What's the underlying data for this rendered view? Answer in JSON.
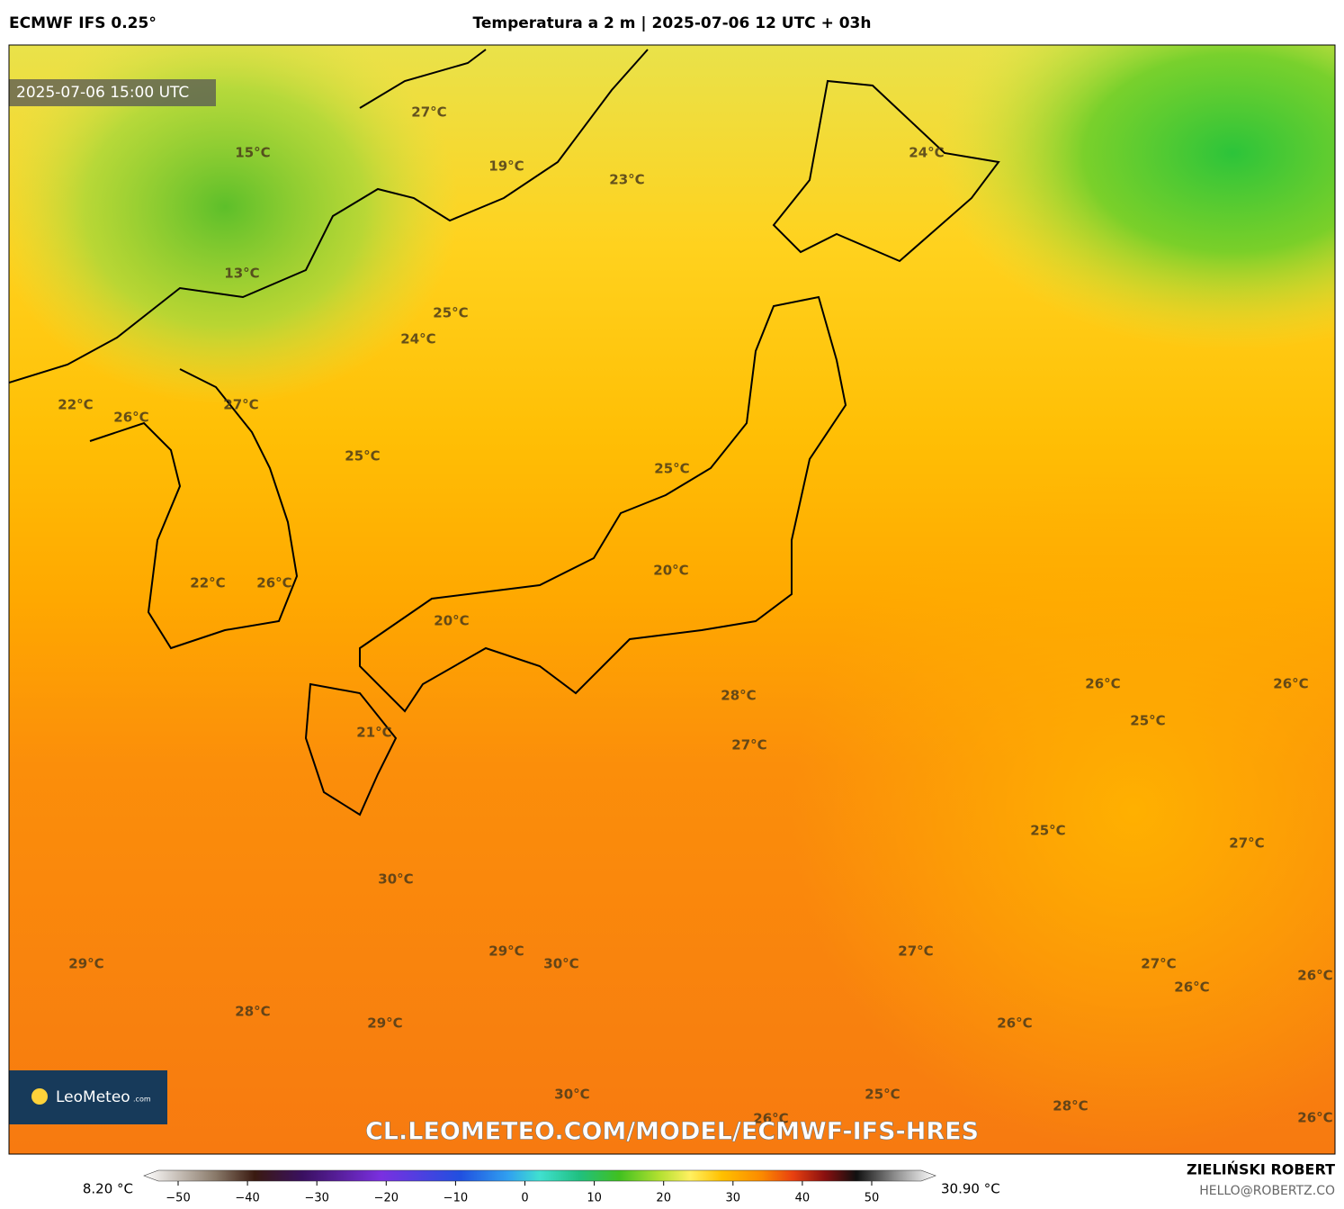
{
  "header": {
    "model": "ECMWF IFS 0.25°",
    "title": "Temperatura a 2 m | 2025-07-06 12 UTC + 03h"
  },
  "map": {
    "timestamp": "2025-07-06 15:00 UTC",
    "labels": [
      "27°C",
      "15°C",
      "19°C",
      "23°C",
      "24°C",
      "13°C",
      "25°C",
      "24°C",
      "22°C",
      "26°C",
      "27°C",
      "25°C",
      "25°C",
      "20°C",
      "22°C",
      "26°C",
      "20°C",
      "28°C",
      "26°C",
      "26°C",
      "25°C",
      "21°C",
      "27°C",
      "25°C",
      "27°C",
      "30°C",
      "29°C",
      "30°C",
      "27°C",
      "29°C",
      "27°C",
      "26°C",
      "26°C",
      "28°C",
      "29°C",
      "26°C",
      "30°C",
      "26°C",
      "25°C",
      "28°C",
      "26°C"
    ],
    "logo": {
      "name": "LeoMeteo",
      "suffix": ".com"
    },
    "watermark": "CL.LEOMETEO.COM/MODEL/ECMWF-IFS-HRES"
  },
  "colorbar": {
    "min_label": "8.20 °C",
    "max_label": "30.90 °C",
    "ticks": [
      {
        "value": -50,
        "label": "−50"
      },
      {
        "value": -40,
        "label": "−40"
      },
      {
        "value": -30,
        "label": "−30"
      },
      {
        "value": -20,
        "label": "−20"
      },
      {
        "value": -10,
        "label": "−10"
      },
      0,
      10,
      20,
      30,
      40,
      50
    ]
  },
  "footer": {
    "author": "ZIELIŃSKI ROBERT",
    "email": "HELLO@ROBERTZ.CO"
  }
}
